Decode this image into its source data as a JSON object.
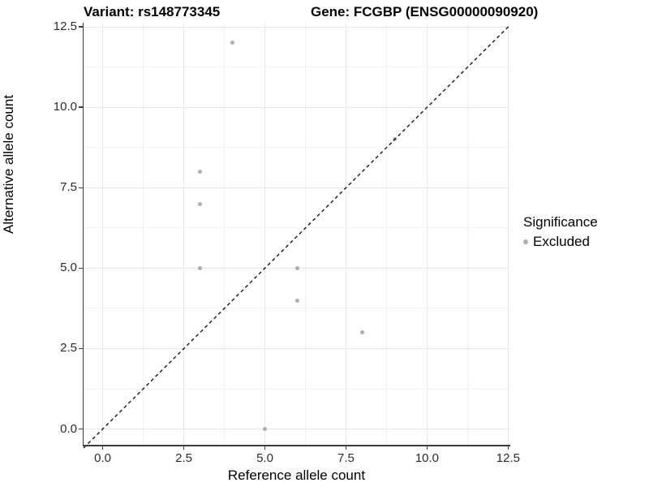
{
  "titles": {
    "left": "Variant: rs148773345",
    "right": "Gene: FCGBP (ENSG00000090920)"
  },
  "legend": {
    "title": "Significance",
    "items": [
      {
        "label": "Excluded",
        "color": "#aeaeae"
      }
    ]
  },
  "chart_data": {
    "type": "scatter",
    "title": "Variant: rs148773345    Gene: FCGBP (ENSG00000090920)",
    "xlabel": "Reference allele count",
    "ylabel": "Alternative allele count",
    "xlim": [
      -0.59,
      12.54
    ],
    "ylim": [
      -0.49,
      12.63
    ],
    "x_ticks": [
      0.0,
      2.5,
      5.0,
      7.5,
      10.0,
      12.5
    ],
    "y_ticks": [
      0.0,
      2.5,
      5.0,
      7.5,
      10.0,
      12.5
    ],
    "x_tick_labels": [
      "0.0",
      "2.5",
      "5.0",
      "7.5",
      "10.0",
      "12.5"
    ],
    "y_tick_labels": [
      "0.0",
      "2.5",
      "5.0",
      "7.5",
      "10.0",
      "12.5"
    ],
    "x_minor_ticks": [
      1.25,
      3.75,
      6.25,
      8.75,
      11.25
    ],
    "y_minor_ticks": [
      1.25,
      3.75,
      6.25,
      8.75,
      11.25
    ],
    "grid": "major+minor",
    "legend_position": "right",
    "series": [
      {
        "name": "Excluded",
        "color": "#aeaeae",
        "points": [
          [
            3,
            5
          ],
          [
            3,
            7
          ],
          [
            3,
            8
          ],
          [
            4,
            12
          ],
          [
            5,
            0
          ],
          [
            6,
            4
          ],
          [
            6,
            5
          ],
          [
            8,
            3
          ],
          [
            9,
            9
          ]
        ]
      }
    ],
    "reference_line": {
      "slope": 1,
      "intercept": 0,
      "style": "dashed",
      "color": "#161616"
    }
  }
}
